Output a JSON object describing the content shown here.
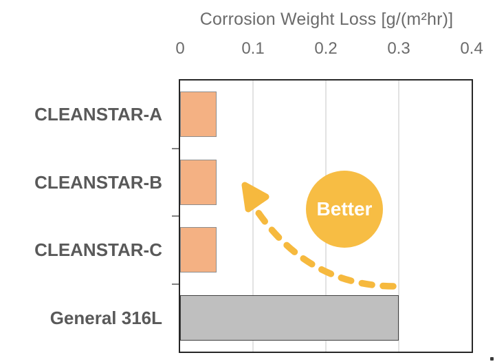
{
  "chart_data": {
    "type": "bar",
    "orientation": "horizontal",
    "title": "Corrosion Weight Loss [g/(m²hr)]",
    "categories": [
      "CLEANSTAR-A",
      "CLEANSTAR-B",
      "CLEANSTAR-C",
      "General 316L"
    ],
    "values": [
      0.05,
      0.05,
      0.05,
      0.3
    ],
    "xlim": [
      0,
      0.4
    ],
    "xtick_values": [
      0,
      0.1,
      0.2,
      0.3,
      0.4
    ],
    "xtick_labels": [
      "0",
      "0.1",
      "0.2",
      "0.3",
      "0.4"
    ],
    "grid": true,
    "legend": false,
    "bar_styles": [
      {
        "fill": "#F4B183",
        "border": "#8C8C8C"
      },
      {
        "fill": "#F4B183",
        "border": "#8C8C8C"
      },
      {
        "fill": "#F4B183",
        "border": "#8C8C8C"
      },
      {
        "fill": "#BFBFBF",
        "border": "#404040"
      }
    ],
    "annotation": {
      "label": "Better",
      "circle_color": "#F7BD44",
      "arrow_color": "#F6B93E",
      "text_color": "#FFFFFF",
      "arrow_direction": "up-left"
    }
  },
  "colors": {
    "plot_border": "#262626",
    "gridline": "#E2E2E2",
    "axis_tick": "#808080",
    "title_text": "#6B6B6B",
    "category_text": "#595959",
    "background": "#FFFFFF"
  }
}
